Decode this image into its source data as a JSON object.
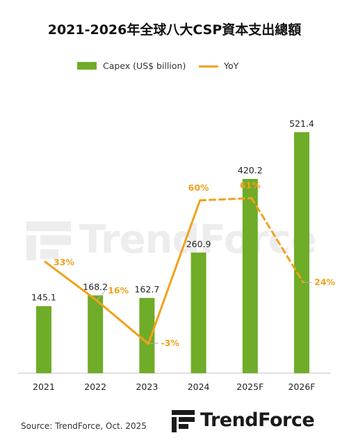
{
  "chart_data": {
    "type": "bar",
    "title": "2021-2026年全球八大CSP資本支出總額",
    "categories": [
      "2021",
      "2022",
      "2023",
      "2024",
      "2025F",
      "2026F"
    ],
    "series": [
      {
        "name": "Capex (US$ billion)",
        "type": "bar",
        "values": [
          145.1,
          168.2,
          162.7,
          260.9,
          420.2,
          521.4
        ],
        "labels": [
          "145.1",
          "168.2",
          "162.7",
          "260.9",
          "420.2",
          "521.4"
        ],
        "color": "#6fac28"
      },
      {
        "name": "YoY",
        "type": "line",
        "values": [
          33,
          16,
          -3,
          60,
          61,
          24
        ],
        "labels": [
          "33%",
          "16%",
          "-3%",
          "60%",
          "61%",
          "24%"
        ],
        "dashed_from_index": 4,
        "color": "#f2a11b"
      }
    ],
    "xlabel": "",
    "ylabel": "",
    "grid": false,
    "legend": "top"
  },
  "source": "Source: TrendForce, Oct. 2025",
  "logo": {
    "text": "TrendForce"
  },
  "watermark": {
    "text": "TrendForce"
  },
  "colors": {
    "bar": "#6fac28",
    "line": "#f2a11b",
    "axis": "#bfbfbf",
    "text": "#222222"
  }
}
